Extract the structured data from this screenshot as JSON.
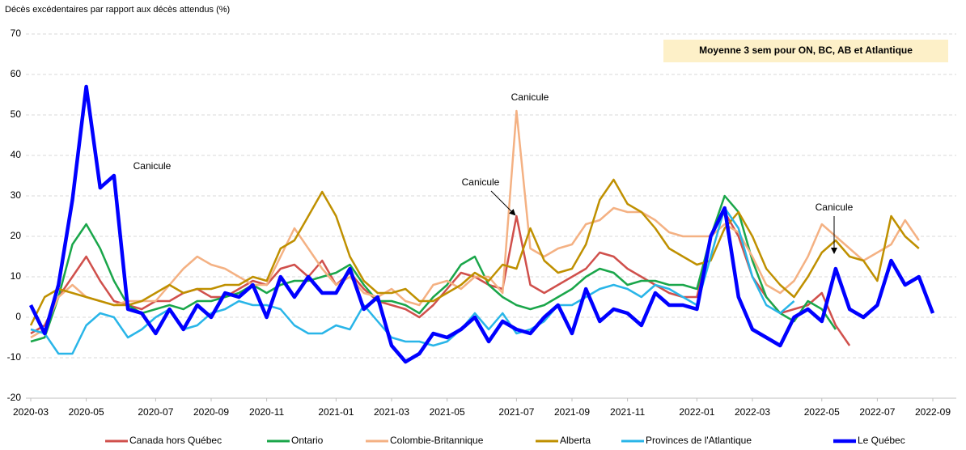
{
  "chart_data": {
    "type": "line",
    "title": "Décès excédentaires par rapport aux décès attendus (%)",
    "note": "Moyenne 3 sem pour ON, BC, AB et Atlantique",
    "annotations": [
      "Canicule",
      "Canicule",
      "Canicule",
      "Canicule"
    ],
    "categories": [
      "2020-03",
      null,
      null,
      null,
      "2020-05",
      null,
      null,
      null,
      null,
      "2020-07",
      null,
      null,
      null,
      "2020-09",
      null,
      null,
      null,
      "2020-11",
      null,
      null,
      null,
      null,
      "2021-01",
      null,
      null,
      null,
      "2021-03",
      null,
      null,
      null,
      "2021-05",
      null,
      null,
      null,
      null,
      "2021-07",
      null,
      null,
      null,
      "2021-09",
      null,
      null,
      null,
      "2021-11",
      null,
      null,
      null,
      null,
      "2022-01",
      null,
      null,
      null,
      "2022-03",
      null,
      null,
      null,
      null,
      "2022-05",
      null,
      null,
      null,
      "2022-07",
      null,
      null,
      null,
      "2022-09"
    ],
    "ylim": [
      -20,
      70
    ],
    "yticks": [
      -20,
      -10,
      0,
      10,
      20,
      30,
      40,
      50,
      60,
      70
    ],
    "grid": true,
    "legend": "bottom",
    "series": [
      {
        "name": "Canada hors Québec",
        "color": "#d0504c",
        "values": [
          -4,
          -2,
          5,
          10,
          15,
          9,
          4,
          3,
          2,
          4,
          4,
          6,
          7,
          5,
          5,
          7,
          9,
          8,
          12,
          13,
          10,
          14,
          8,
          11,
          7,
          4,
          3,
          2,
          0,
          3,
          7,
          11,
          10,
          8,
          7,
          25,
          8,
          6,
          8,
          10,
          12,
          16,
          15,
          12,
          10,
          8,
          6,
          5,
          5,
          20,
          26,
          20,
          10,
          5,
          1,
          2,
          3,
          6,
          -2,
          -7,
          null,
          null,
          null,
          null,
          null,
          null
        ]
      },
      {
        "name": "Ontario",
        "color": "#1aa64a",
        "values": [
          -6,
          -5,
          5,
          18,
          23,
          17,
          9,
          3,
          1,
          2,
          3,
          2,
          4,
          4,
          5,
          6,
          8,
          6,
          8,
          9,
          9,
          10,
          11,
          13,
          8,
          4,
          4,
          3,
          1,
          5,
          8,
          13,
          15,
          8,
          5,
          3,
          2,
          3,
          5,
          7,
          10,
          12,
          11,
          8,
          9,
          9,
          8,
          8,
          7,
          20,
          30,
          26,
          14,
          5,
          1,
          -1,
          4,
          2,
          -3,
          null,
          null,
          null,
          null,
          null,
          null,
          null
        ]
      },
      {
        "name": "Colombie-Britannique",
        "color": "#f4b183",
        "values": [
          -5,
          -3,
          5,
          8,
          5,
          4,
          3,
          4,
          4,
          4,
          8,
          12,
          15,
          13,
          12,
          10,
          8,
          8,
          15,
          22,
          17,
          12,
          8,
          10,
          6,
          5,
          7,
          4,
          3,
          8,
          9,
          7,
          10,
          10,
          6,
          51,
          17,
          15,
          17,
          18,
          23,
          24,
          27,
          26,
          26,
          24,
          21,
          20,
          20,
          20,
          23,
          21,
          15,
          8,
          6,
          9,
          15,
          23,
          20,
          17,
          14,
          16,
          18,
          24,
          19,
          null
        ]
      },
      {
        "name": "Alberta",
        "color": "#bf9000",
        "values": [
          -2,
          5,
          7,
          6,
          5,
          4,
          3,
          3,
          4,
          6,
          8,
          6,
          7,
          7,
          8,
          8,
          10,
          9,
          17,
          19,
          25,
          31,
          25,
          15,
          9,
          6,
          6,
          7,
          4,
          4,
          6,
          8,
          11,
          9,
          13,
          12,
          22,
          14,
          11,
          12,
          18,
          29,
          34,
          28,
          26,
          22,
          17,
          15,
          13,
          14,
          22,
          26,
          20,
          12,
          8,
          5,
          10,
          16,
          19,
          15,
          14,
          9,
          25,
          20,
          17,
          null
        ]
      },
      {
        "name": "Provinces de l'Atlantique",
        "color": "#29b5e8",
        "values": [
          -3,
          -4,
          -9,
          -9,
          -2,
          1,
          0,
          -5,
          -3,
          0,
          2,
          -3,
          -2,
          1,
          2,
          4,
          3,
          3,
          2,
          -2,
          -4,
          -4,
          -2,
          -3,
          3,
          -1,
          -5,
          -6,
          -6,
          -7,
          -6,
          -3,
          1,
          -3,
          1,
          -4,
          -3,
          -1,
          3,
          3,
          5,
          7,
          8,
          7,
          5,
          8,
          7,
          5,
          3,
          15,
          27,
          22,
          10,
          3,
          1,
          4,
          null,
          null,
          null,
          null,
          null,
          null,
          null,
          null,
          null,
          null
        ]
      },
      {
        "name": "Le Québec",
        "color": "#0000ff",
        "values": [
          3,
          -4,
          8,
          29,
          57,
          32,
          35,
          2,
          1,
          -4,
          2,
          -3,
          3,
          0,
          6,
          5,
          8,
          0,
          10,
          5,
          10,
          6,
          6,
          12,
          2,
          5,
          -7,
          -11,
          -9,
          -4,
          -5,
          -3,
          0,
          -6,
          -1,
          -3,
          -4,
          0,
          3,
          -4,
          7,
          -1,
          2,
          1,
          -2,
          6,
          3,
          3,
          2,
          20,
          27,
          5,
          -3,
          -5,
          -7,
          0,
          2,
          -1,
          12,
          2,
          0,
          3,
          14,
          8,
          10,
          1
        ]
      }
    ]
  }
}
